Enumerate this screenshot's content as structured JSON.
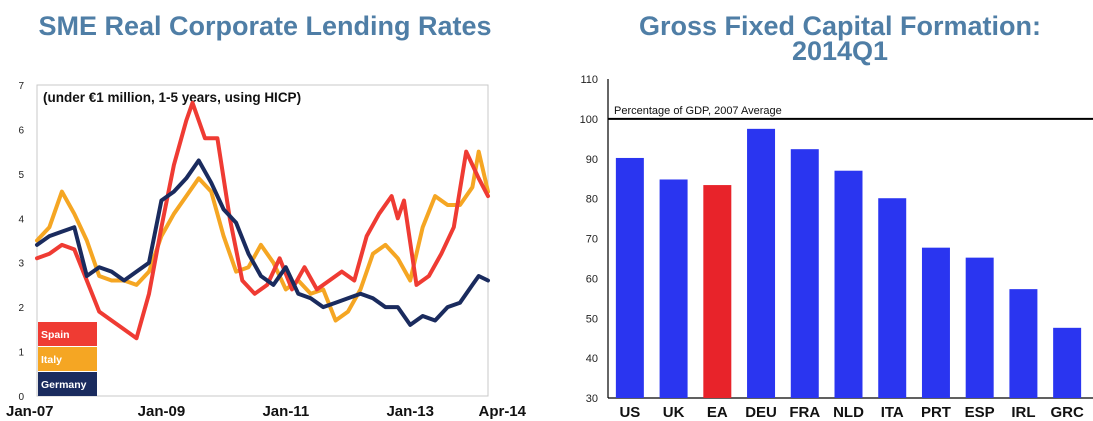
{
  "chart_data": [
    {
      "type": "line",
      "title": "SME Real Corporate Lending Rates",
      "subtitle": "(under €1 million, 1-5 years, using HICP)",
      "xlabel": "",
      "ylabel": "",
      "ylim": [
        0,
        7
      ],
      "yticks": [
        0,
        1,
        2,
        3,
        4,
        5,
        6,
        7
      ],
      "xticks": [
        "Jan-07",
        "Jan-09",
        "Jan-11",
        "Jan-13",
        "Apr-14"
      ],
      "x_range": [
        "2007-01",
        "2014-04"
      ],
      "grid": false,
      "legend": "bottom-left",
      "series": [
        {
          "name": "Spain",
          "color": "#ef3b33",
          "values": [
            [
              2007.0,
              3.1
            ],
            [
              2007.2,
              3.2
            ],
            [
              2007.4,
              3.4
            ],
            [
              2007.6,
              3.3
            ],
            [
              2007.8,
              2.6
            ],
            [
              2008.0,
              1.9
            ],
            [
              2008.2,
              1.7
            ],
            [
              2008.4,
              1.5
            ],
            [
              2008.6,
              1.3
            ],
            [
              2008.8,
              2.3
            ],
            [
              2009.0,
              3.8
            ],
            [
              2009.2,
              5.2
            ],
            [
              2009.4,
              6.2
            ],
            [
              2009.5,
              6.6
            ],
            [
              2009.7,
              5.8
            ],
            [
              2009.9,
              5.8
            ],
            [
              2010.1,
              4.0
            ],
            [
              2010.3,
              2.6
            ],
            [
              2010.5,
              2.3
            ],
            [
              2010.7,
              2.5
            ],
            [
              2010.9,
              3.1
            ],
            [
              2011.1,
              2.4
            ],
            [
              2011.3,
              2.9
            ],
            [
              2011.5,
              2.4
            ],
            [
              2011.7,
              2.6
            ],
            [
              2011.9,
              2.8
            ],
            [
              2012.1,
              2.6
            ],
            [
              2012.3,
              3.6
            ],
            [
              2012.5,
              4.1
            ],
            [
              2012.7,
              4.5
            ],
            [
              2012.8,
              4.0
            ],
            [
              2012.9,
              4.4
            ],
            [
              2013.1,
              2.5
            ],
            [
              2013.3,
              2.7
            ],
            [
              2013.5,
              3.2
            ],
            [
              2013.7,
              3.8
            ],
            [
              2013.9,
              5.5
            ],
            [
              2014.1,
              4.9
            ],
            [
              2014.25,
              4.5
            ]
          ]
        },
        {
          "name": "Italy",
          "color": "#f5a623",
          "values": [
            [
              2007.0,
              3.5
            ],
            [
              2007.2,
              3.8
            ],
            [
              2007.4,
              4.6
            ],
            [
              2007.6,
              4.1
            ],
            [
              2007.8,
              3.5
            ],
            [
              2008.0,
              2.7
            ],
            [
              2008.2,
              2.6
            ],
            [
              2008.4,
              2.6
            ],
            [
              2008.6,
              2.5
            ],
            [
              2008.8,
              2.8
            ],
            [
              2009.0,
              3.6
            ],
            [
              2009.2,
              4.1
            ],
            [
              2009.4,
              4.5
            ],
            [
              2009.6,
              4.9
            ],
            [
              2009.8,
              4.6
            ],
            [
              2010.0,
              3.6
            ],
            [
              2010.2,
              2.8
            ],
            [
              2010.4,
              2.9
            ],
            [
              2010.6,
              3.4
            ],
            [
              2010.8,
              3.0
            ],
            [
              2011.0,
              2.4
            ],
            [
              2011.2,
              2.6
            ],
            [
              2011.4,
              2.3
            ],
            [
              2011.6,
              2.4
            ],
            [
              2011.8,
              1.7
            ],
            [
              2012.0,
              1.9
            ],
            [
              2012.2,
              2.4
            ],
            [
              2012.4,
              3.2
            ],
            [
              2012.6,
              3.4
            ],
            [
              2012.8,
              3.1
            ],
            [
              2013.0,
              2.6
            ],
            [
              2013.2,
              3.8
            ],
            [
              2013.4,
              4.5
            ],
            [
              2013.6,
              4.3
            ],
            [
              2013.8,
              4.3
            ],
            [
              2014.0,
              4.7
            ],
            [
              2014.1,
              5.5
            ],
            [
              2014.25,
              4.6
            ]
          ]
        },
        {
          "name": "Germany",
          "color": "#1a2b5e",
          "values": [
            [
              2007.0,
              3.4
            ],
            [
              2007.2,
              3.6
            ],
            [
              2007.4,
              3.7
            ],
            [
              2007.6,
              3.8
            ],
            [
              2007.8,
              2.7
            ],
            [
              2008.0,
              2.9
            ],
            [
              2008.2,
              2.8
            ],
            [
              2008.4,
              2.6
            ],
            [
              2008.6,
              2.8
            ],
            [
              2008.8,
              3.0
            ],
            [
              2009.0,
              4.4
            ],
            [
              2009.2,
              4.6
            ],
            [
              2009.4,
              4.9
            ],
            [
              2009.6,
              5.3
            ],
            [
              2009.8,
              4.8
            ],
            [
              2010.0,
              4.2
            ],
            [
              2010.2,
              3.9
            ],
            [
              2010.4,
              3.2
            ],
            [
              2010.6,
              2.7
            ],
            [
              2010.8,
              2.5
            ],
            [
              2011.0,
              2.9
            ],
            [
              2011.2,
              2.3
            ],
            [
              2011.4,
              2.2
            ],
            [
              2011.6,
              2.0
            ],
            [
              2011.8,
              2.1
            ],
            [
              2012.0,
              2.2
            ],
            [
              2012.2,
              2.3
            ],
            [
              2012.4,
              2.2
            ],
            [
              2012.6,
              2.0
            ],
            [
              2012.8,
              2.0
            ],
            [
              2013.0,
              1.6
            ],
            [
              2013.2,
              1.8
            ],
            [
              2013.4,
              1.7
            ],
            [
              2013.6,
              2.0
            ],
            [
              2013.8,
              2.1
            ],
            [
              2014.0,
              2.5
            ],
            [
              2014.1,
              2.7
            ],
            [
              2014.25,
              2.6
            ]
          ]
        }
      ]
    },
    {
      "type": "bar",
      "title": "Gross Fixed Capital Formation: 2014Q1",
      "annotation": "Percentage of GDP, 2007 Average",
      "reference_line": 100,
      "xlabel": "",
      "ylabel": "",
      "ylim": [
        30,
        110
      ],
      "yticks": [
        30,
        40,
        50,
        60,
        70,
        80,
        90,
        100,
        110
      ],
      "grid": false,
      "categories": [
        "US",
        "UK",
        "EA",
        "DEU",
        "FRA",
        "NLD",
        "ITA",
        "PRT",
        "ESP",
        "IRL",
        "GRC"
      ],
      "values": [
        90.2,
        84.8,
        83.4,
        97.5,
        92.4,
        87.0,
        80.1,
        67.7,
        65.2,
        57.3,
        47.6
      ],
      "colors": [
        "#2a35f0",
        "#2a35f0",
        "#e8232a",
        "#2a35f0",
        "#2a35f0",
        "#2a35f0",
        "#2a35f0",
        "#2a35f0",
        "#2a35f0",
        "#2a35f0",
        "#2a35f0"
      ]
    }
  ]
}
